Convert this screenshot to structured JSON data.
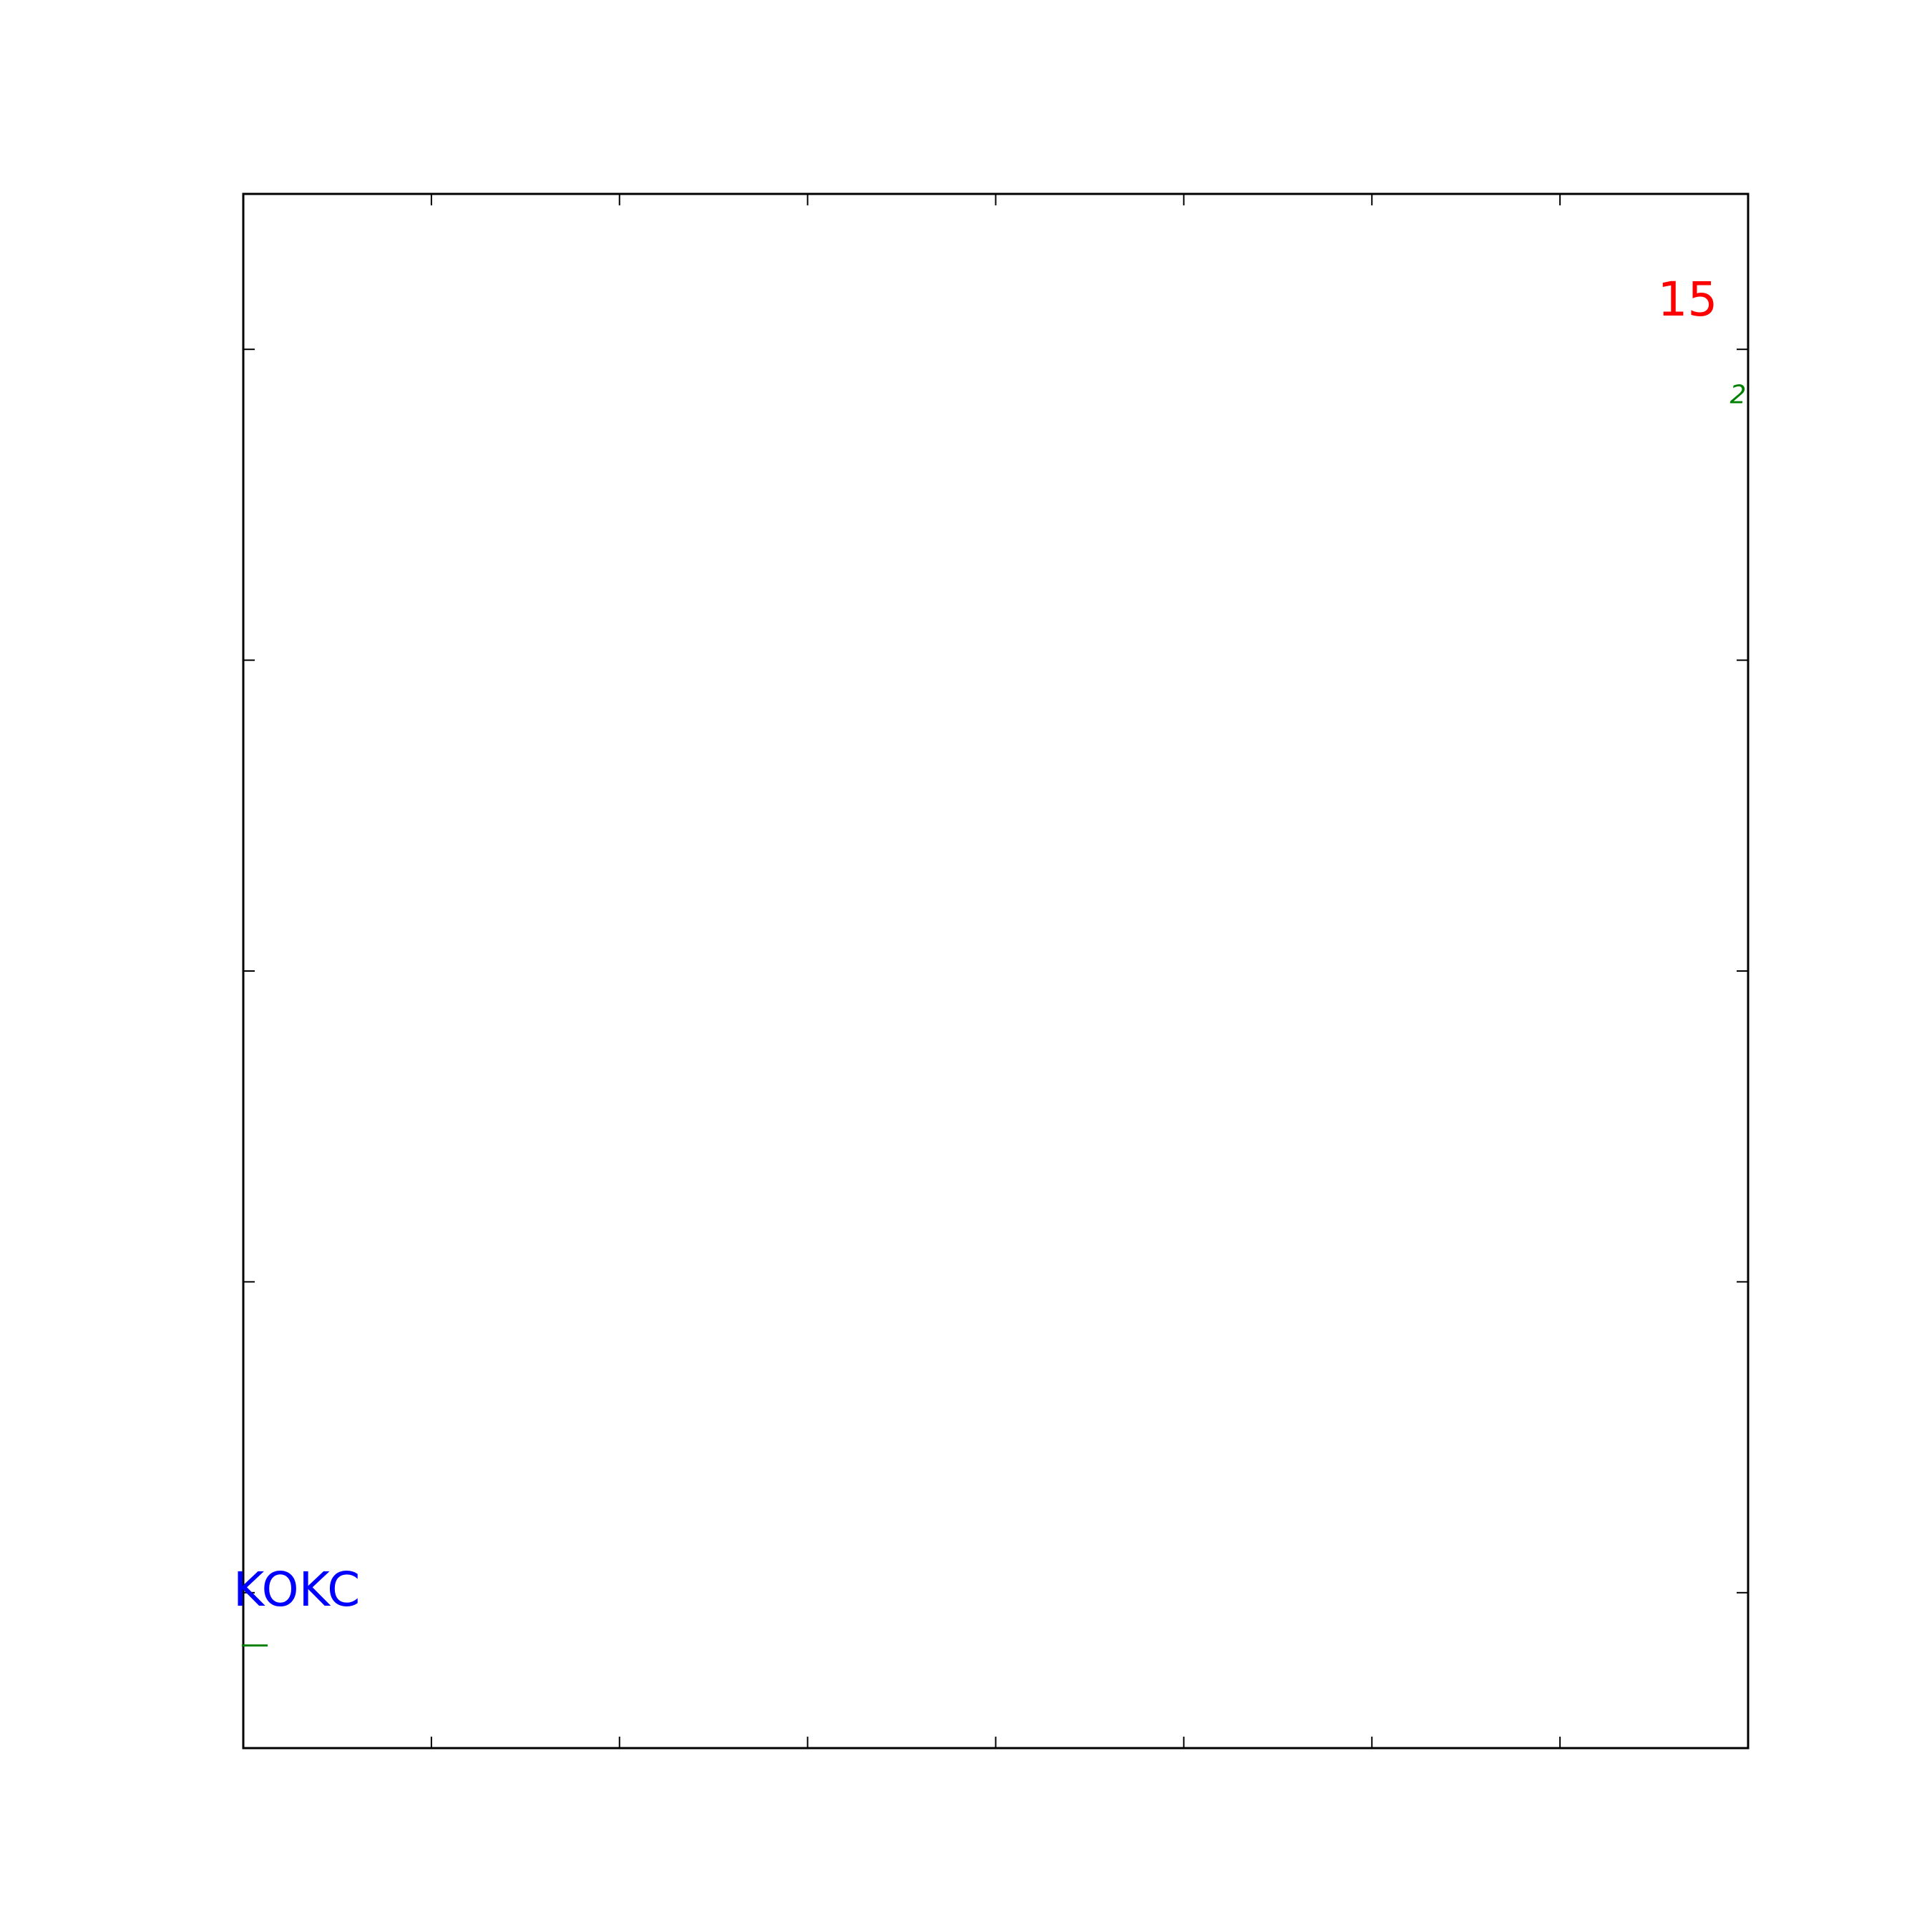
{
  "chart_data": {
    "type": "scatter",
    "title": "",
    "xlabel": "",
    "ylabel": "",
    "grid": false,
    "xlim": [
      0,
      8
    ],
    "ylim": [
      -0.5,
      4.5
    ],
    "x_ticks": [
      0,
      1,
      2,
      3,
      4,
      5,
      6,
      7,
      8
    ],
    "y_ticks": [
      0,
      1,
      2,
      3,
      4
    ],
    "tick_labels_visible": false,
    "annotations": [
      {
        "text": "KOKC",
        "x": 0.0,
        "y": 0.0,
        "color": "#0000ff"
      },
      {
        "text": "15",
        "x": 7.8,
        "y": 4.15,
        "color": "#ff0000"
      }
    ],
    "green_markers": [
      {
        "symbol": "—",
        "x": 0.0,
        "y": -0.17,
        "color": "#008000"
      },
      {
        "symbol": "2",
        "x": 8.0,
        "y": 3.85,
        "color": "#008000"
      }
    ]
  }
}
